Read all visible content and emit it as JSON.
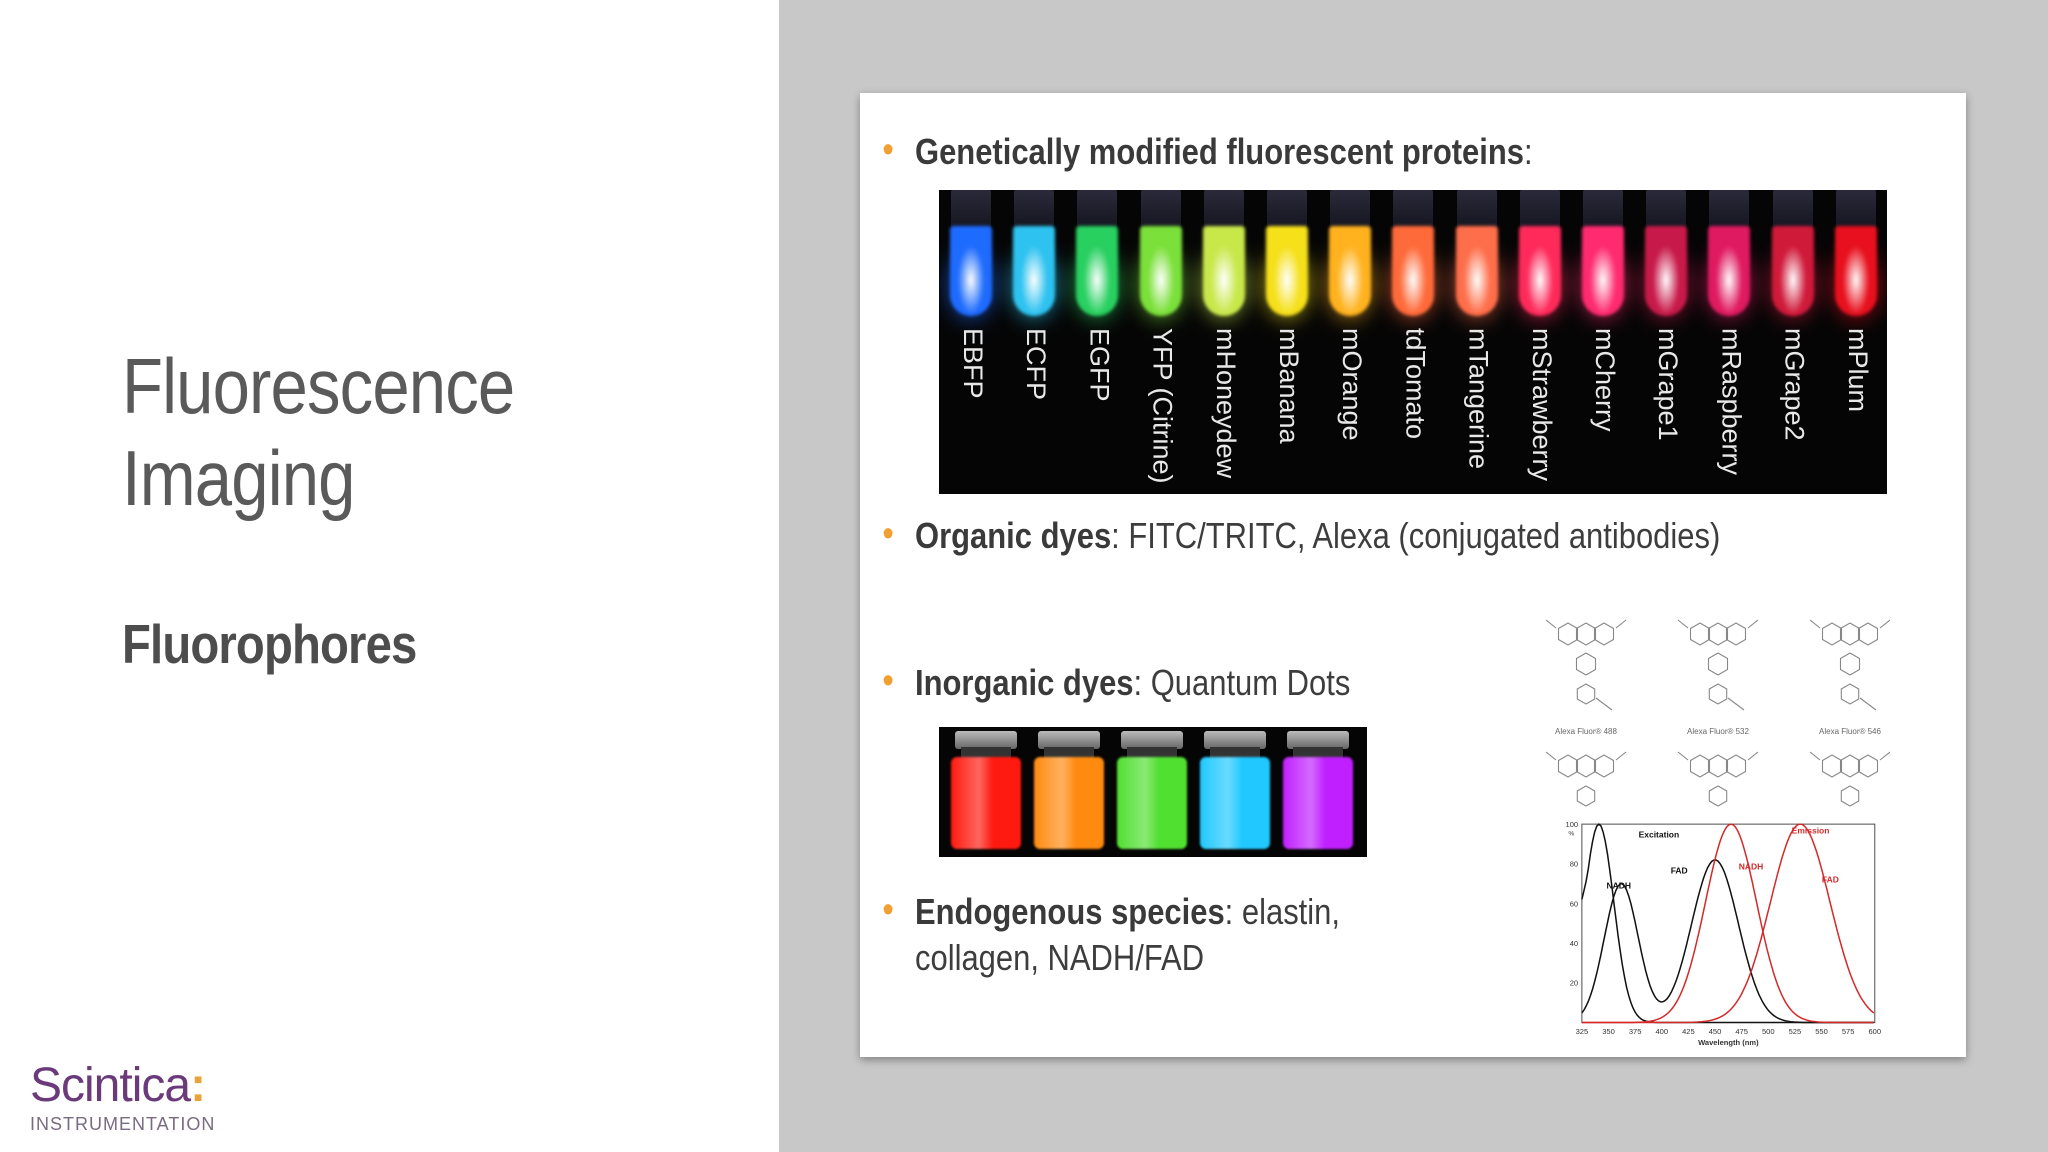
{
  "slide": {
    "title_line1": "Fluorescence",
    "title_line2": "Imaging",
    "subtitle": "Fluorophores"
  },
  "logo": {
    "name": "Scintica",
    "colon": ":",
    "sub": "INSTRUMENTATION"
  },
  "bullets": [
    {
      "bold": "Genetically modified fluorescent proteins",
      "rest": ":"
    },
    {
      "bold": "Organic dyes",
      "rest": ": FITC/TRITC, Alexa (conjugated antibodies)"
    },
    {
      "bold": "Inorganic dyes",
      "rest": ": Quantum Dots"
    },
    {
      "bold": "Endogenous species",
      "rest": ": elastin,",
      "rest2": "collagen, NADH/FAD"
    }
  ],
  "proteins": [
    {
      "name": "EBFP",
      "color": "#1e6bff"
    },
    {
      "name": "ECFP",
      "color": "#2ec2f0"
    },
    {
      "name": "EGFP",
      "color": "#28d060"
    },
    {
      "name": "YFP (Citrine)",
      "color": "#7be03a"
    },
    {
      "name": "mHoneydew",
      "color": "#c8e84a"
    },
    {
      "name": "mBanana",
      "color": "#f5e01a"
    },
    {
      "name": "mOrange",
      "color": "#ffb21e"
    },
    {
      "name": "tdTomato",
      "color": "#ff6a3a"
    },
    {
      "name": "mTangerine",
      "color": "#ff6e4a"
    },
    {
      "name": "mStrawberry",
      "color": "#ff2a5a"
    },
    {
      "name": "mCherry",
      "color": "#ff2a70"
    },
    {
      "name": "mGrape1",
      "color": "#c81a4a"
    },
    {
      "name": "mRaspberry",
      "color": "#e01a60"
    },
    {
      "name": "mGrape2",
      "color": "#d01a3a"
    },
    {
      "name": "mPlum",
      "color": "#e8101e"
    }
  ],
  "quantum_dots": [
    "#ff1a10",
    "#ff8a10",
    "#50e030",
    "#20c8ff",
    "#c020ff"
  ],
  "alexa_labels": [
    "Alexa Fluor® 488",
    "Alexa Fluor® 532",
    "Alexa Fluor® 546"
  ],
  "spectrum": {
    "y_ticks": [
      "100\n%",
      "80",
      "60",
      "40",
      "20"
    ],
    "x_ticks": [
      "325",
      "350",
      "375",
      "400",
      "425",
      "450",
      "475",
      "500",
      "525",
      "550",
      "575",
      "600"
    ],
    "xlabel": "Wavelength (nm)",
    "excitation_label": "Excitation",
    "emission_label": "Emission",
    "nadh_label": "NADH",
    "fad_label": "FAD",
    "nadh_em_label": "NADH",
    "fad_em_label": "FAD",
    "black": "#111111",
    "red": "#d42a2a"
  }
}
